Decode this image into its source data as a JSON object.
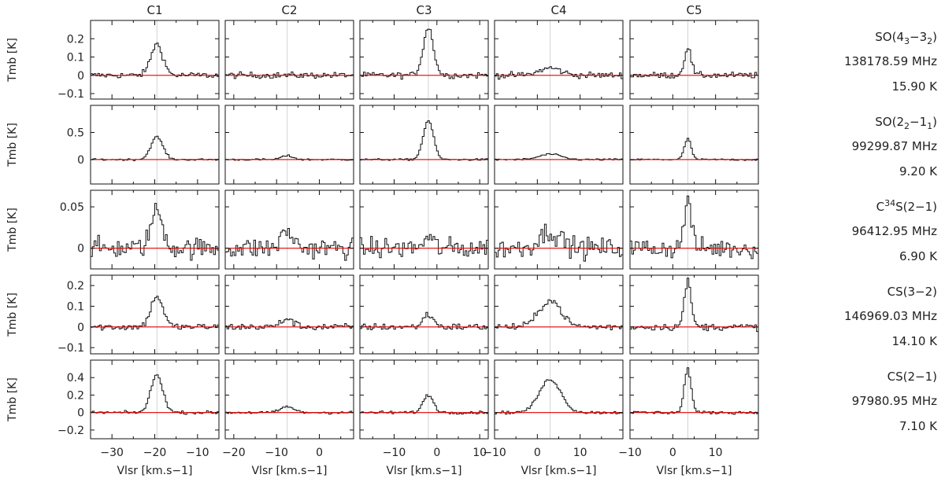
{
  "columns": [
    "C1",
    "C2",
    "C3",
    "C4",
    "C5"
  ],
  "row_labels": [
    {
      "mol": "SO",
      "sub1": "3",
      "mid": "−3",
      "sub2": "2",
      "open": "(4",
      "close": ")",
      "mol_text": "SO(4",
      "freq": "138178.59 MHz",
      "temp": "15.90 K"
    },
    {
      "mol": "SO",
      "sub1": "2",
      "mid": "−1",
      "sub2": "1",
      "open": "(2",
      "close": ")",
      "mol_text": "SO(2",
      "freq": "99299.87 MHz",
      "temp": "9.20 K"
    },
    {
      "mol": "C",
      "sup": "34",
      "rest": "S(2−1)",
      "freq": "96412.95 MHz",
      "temp": "6.90 K"
    },
    {
      "mol_plain": "CS(3−2)",
      "freq": "146969.03 MHz",
      "temp": "14.10 K"
    },
    {
      "mol_plain": "CS(2−1)",
      "freq": "97980.95 MHz",
      "temp": "7.10 K"
    }
  ],
  "ylabel": "Tmb  [K]",
  "xlabel": "Vlsr  [km.s−1]",
  "chart_data": {
    "type": "line",
    "style": "step-histogram spectra with red zero baseline and grey vertical line at source velocity",
    "columns": [
      {
        "name": "C1",
        "xlim": [
          -35,
          -5
        ],
        "xticks": [
          -30,
          -20,
          -10
        ],
        "vline": -19.5,
        "peak_v": -19.5,
        "width": 1.4
      },
      {
        "name": "C2",
        "xlim": [
          -22,
          8
        ],
        "xticks": [
          -20,
          -10,
          0
        ],
        "vline": -7.5,
        "peak_v": -7.5,
        "width": 1.4
      },
      {
        "name": "C3",
        "xlim": [
          -18,
          12
        ],
        "xticks": [
          -10,
          0,
          10
        ],
        "vline": -2.0,
        "peak_v": -2.0,
        "width": 1.2
      },
      {
        "name": "C4",
        "xlim": [
          -10,
          20
        ],
        "xticks": [
          -10,
          0,
          10
        ],
        "vline": 3.0,
        "peak_v": 3.0,
        "width": 2.5
      },
      {
        "name": "C5",
        "xlim": [
          -10,
          20
        ],
        "xticks": [
          -10,
          0,
          10
        ],
        "vline": 3.5,
        "peak_v": 3.5,
        "width": 0.8
      }
    ],
    "rows": [
      {
        "name": "SO(4_3-3_2)",
        "ylim": [
          -0.13,
          0.3
        ],
        "yticks": [
          -0.1,
          0,
          0.1,
          0.2
        ],
        "ytick_labels": [
          "−0.1",
          "0",
          "0.1",
          "0.2"
        ],
        "noise": 0.012,
        "peaks": [
          0.17,
          0.0,
          0.26,
          0.04,
          0.15
        ]
      },
      {
        "name": "SO(2_2-1_1)",
        "ylim": [
          -0.45,
          1.0
        ],
        "yticks": [
          0,
          0.5
        ],
        "ytick_labels": [
          "0",
          "0.5"
        ],
        "noise": 0.012,
        "peaks": [
          0.42,
          0.07,
          0.72,
          0.1,
          0.38
        ]
      },
      {
        "name": "C34S(2-1)",
        "ylim": [
          -0.025,
          0.07
        ],
        "yticks": [
          0,
          0.05
        ],
        "ytick_labels": [
          "0",
          "0.05"
        ],
        "noise": 0.009,
        "peaks": [
          0.045,
          0.02,
          0.012,
          0.02,
          0.06
        ]
      },
      {
        "name": "CS(3-2)",
        "ylim": [
          -0.13,
          0.25
        ],
        "yticks": [
          -0.1,
          0,
          0.1,
          0.2
        ],
        "ytick_labels": [
          "−0.1",
          "0",
          "0.1",
          "0.2"
        ],
        "noise": 0.012,
        "peaks": [
          0.15,
          0.04,
          0.06,
          0.13,
          0.22
        ]
      },
      {
        "name": "CS(2-1)",
        "ylim": [
          -0.3,
          0.6
        ],
        "yticks": [
          -0.2,
          0,
          0.2,
          0.4
        ],
        "ytick_labels": [
          "−0.2",
          "0",
          "0.2",
          "0.4"
        ],
        "noise": 0.012,
        "peaks": [
          0.43,
          0.07,
          0.2,
          0.38,
          0.5
        ]
      }
    ]
  }
}
